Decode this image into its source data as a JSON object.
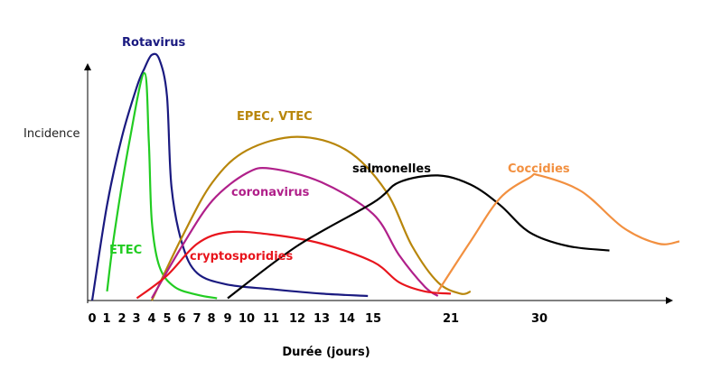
{
  "chart_data": {
    "type": "line",
    "xlabel": "Durée (jours)",
    "ylabel": "Incidence",
    "x_ticks": [
      "0",
      "1",
      "2",
      "3",
      "4",
      "5",
      "6",
      "7",
      "8",
      "9",
      "10",
      "11",
      "12",
      "13",
      "14",
      "15",
      "21",
      "30"
    ],
    "grid": false,
    "series": [
      {
        "name": "Rotavirus",
        "color": "#1a1a80",
        "points": [
          [
            0,
            0
          ],
          [
            1,
            0.42
          ],
          [
            2,
            0.72
          ],
          [
            3,
            0.94
          ],
          [
            3.5,
            1.02
          ],
          [
            4,
            1.08
          ],
          [
            4.5,
            1.06
          ],
          [
            5,
            0.9
          ],
          [
            5.3,
            0.5
          ],
          [
            6,
            0.25
          ],
          [
            7,
            0.12
          ],
          [
            9,
            0.07
          ],
          [
            11,
            0.05
          ],
          [
            13,
            0.03
          ],
          [
            14.8,
            0.02
          ]
        ]
      },
      {
        "name": "ETEC",
        "color": "#22cc22",
        "points": [
          [
            1,
            0.04
          ],
          [
            1.5,
            0.3
          ],
          [
            2.5,
            0.7
          ],
          [
            3.5,
            1.0
          ],
          [
            3.8,
            0.7
          ],
          [
            4,
            0.35
          ],
          [
            4.5,
            0.15
          ],
          [
            5.5,
            0.06
          ],
          [
            7,
            0.025
          ],
          [
            8.3,
            0.01
          ]
        ]
      },
      {
        "name": "EPEC, VTEC",
        "color": "#b8860b",
        "points": [
          [
            4,
            0
          ],
          [
            6,
            0.28
          ],
          [
            8,
            0.52
          ],
          [
            10,
            0.66
          ],
          [
            12,
            0.72
          ],
          [
            14,
            0.66
          ],
          [
            16,
            0.48
          ],
          [
            18,
            0.24
          ],
          [
            20,
            0.08
          ],
          [
            22,
            0.03
          ],
          [
            23,
            0.04
          ]
        ]
      },
      {
        "name": "coronavirus",
        "color": "#b0208a",
        "points": [
          [
            4,
            0.01
          ],
          [
            6,
            0.24
          ],
          [
            8,
            0.44
          ],
          [
            10,
            0.56
          ],
          [
            11,
            0.58
          ],
          [
            13,
            0.52
          ],
          [
            15,
            0.38
          ],
          [
            17,
            0.2
          ],
          [
            19,
            0.06
          ],
          [
            20,
            0.02
          ]
        ]
      },
      {
        "name": "cryptosporidies",
        "color": "#e8151d",
        "points": [
          [
            3,
            0.01
          ],
          [
            5,
            0.11
          ],
          [
            7,
            0.25
          ],
          [
            9,
            0.3
          ],
          [
            11,
            0.29
          ],
          [
            13,
            0.25
          ],
          [
            15,
            0.17
          ],
          [
            17,
            0.08
          ],
          [
            19,
            0.04
          ],
          [
            21,
            0.03
          ]
        ]
      },
      {
        "name": "salmonelles",
        "color": "#000000",
        "points": [
          [
            9,
            0.01
          ],
          [
            12,
            0.24
          ],
          [
            15,
            0.43
          ],
          [
            17,
            0.52
          ],
          [
            20,
            0.55
          ],
          [
            23,
            0.51
          ],
          [
            26,
            0.42
          ],
          [
            29,
            0.3
          ],
          [
            32,
            0.24
          ],
          [
            35,
            0.22
          ]
        ]
      },
      {
        "name": "Coccidies",
        "color": "#f29040",
        "points": [
          [
            20,
            0.04
          ],
          [
            23,
            0.26
          ],
          [
            26,
            0.45
          ],
          [
            29,
            0.54
          ],
          [
            30,
            0.55
          ],
          [
            33,
            0.48
          ],
          [
            36,
            0.32
          ],
          [
            38.5,
            0.25
          ],
          [
            40,
            0.26
          ]
        ]
      }
    ]
  }
}
